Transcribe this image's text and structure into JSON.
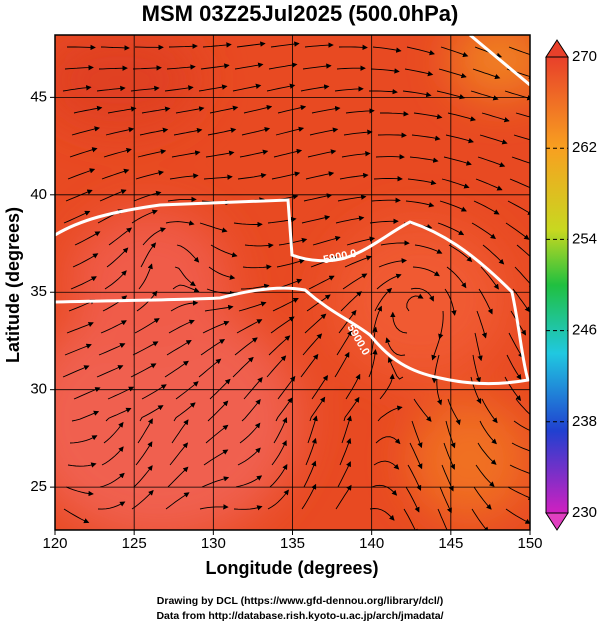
{
  "title": "MSM 03Z25Jul2025 (500.0hPa)",
  "x_axis": {
    "label": "Longitude (degrees)",
    "lim": [
      120,
      150
    ],
    "ticks": [
      120,
      125,
      130,
      135,
      140,
      145,
      150
    ]
  },
  "y_axis": {
    "label": "Latitude  (degrees)",
    "lim": [
      22.8,
      48.2
    ],
    "ticks": [
      25,
      30,
      35,
      40,
      45
    ]
  },
  "colorbar": {
    "lim": [
      230,
      270
    ],
    "ticks": [
      230,
      238,
      246,
      254,
      262,
      270
    ]
  },
  "contour_labels": [
    "5900.0",
    "5900.0"
  ],
  "credits": [
    "Drawing by DCL (https://www.gfd-dennou.org/library/dcl/)",
    "Data from http://database.rish.kyoto-u.ac.jp/arch/jmadata/"
  ]
}
